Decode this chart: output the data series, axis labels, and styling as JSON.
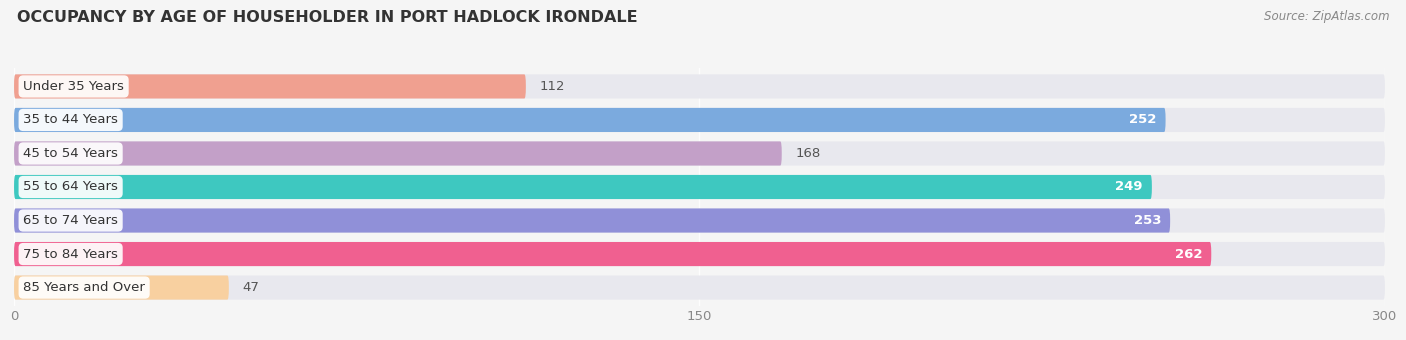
{
  "title": "OCCUPANCY BY AGE OF HOUSEHOLDER IN PORT HADLOCK IRONDALE",
  "source": "Source: ZipAtlas.com",
  "categories": [
    "Under 35 Years",
    "35 to 44 Years",
    "45 to 54 Years",
    "55 to 64 Years",
    "65 to 74 Years",
    "75 to 84 Years",
    "85 Years and Over"
  ],
  "values": [
    112,
    252,
    168,
    249,
    253,
    262,
    47
  ],
  "bar_colors": [
    "#f0a090",
    "#7baade",
    "#c3a0c8",
    "#3ec8c0",
    "#9090d8",
    "#f06090",
    "#f8d0a0"
  ],
  "label_colors": [
    "#555555",
    "#ffffff",
    "#555555",
    "#ffffff",
    "#ffffff",
    "#ffffff",
    "#555555"
  ],
  "background_color": "#f5f5f5",
  "bar_bg_color": "#e8e8ee",
  "xlim_min": 0,
  "xlim_max": 300,
  "xticks": [
    0,
    150,
    300
  ],
  "title_fontsize": 11.5,
  "label_fontsize": 9.5,
  "value_fontsize": 9.5
}
